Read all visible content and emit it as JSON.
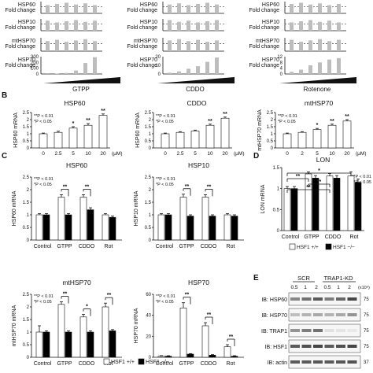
{
  "colors": {
    "ink": "#111111",
    "bar_gray": "#bdbdbd",
    "bar_white": "#ffffff",
    "bar_black": "#000000",
    "blot_band": "#1a1a1a",
    "blot_bg": "#f6f6f6"
  },
  "panel_a": {
    "columns": [
      {
        "label": "GTPP"
      },
      {
        "label": "CDDO"
      },
      {
        "label": "Rotenone"
      }
    ],
    "rows": [
      {
        "name": "HSP60",
        "sub": "Fold change"
      },
      {
        "name": "HSP10",
        "sub": "Fold change"
      },
      {
        "name": "mtHSP70",
        "sub": "Fold change"
      },
      {
        "name": "HSP70",
        "sub": "Fold change"
      }
    ],
    "hsp70_ticks": [
      [
        "300",
        "200",
        "100",
        "0"
      ],
      [
        "20",
        "10",
        "0"
      ],
      [
        "12",
        "8",
        "4",
        "0"
      ]
    ],
    "hsp70_values": [
      [
        2,
        6,
        18,
        60,
        190,
        290
      ],
      [
        1.5,
        3,
        6,
        9,
        14,
        19
      ],
      [
        1.5,
        3,
        6,
        8,
        10,
        11
      ]
    ]
  },
  "panel_b": {
    "letter": "B",
    "ylabel_unit": "mRNA",
    "x_unit": "(μM)",
    "legend": [
      "**P < 0.01",
      "*P < 0.05"
    ],
    "charts": [
      {
        "title": "HSP60",
        "ylabel": "HSP60 mRNA",
        "x": [
          "0",
          "2.5",
          "5",
          "10",
          "20"
        ],
        "values": [
          1.0,
          1.1,
          1.4,
          1.6,
          2.3
        ],
        "errors": [
          0.05,
          0.08,
          0.1,
          0.12,
          0.1
        ],
        "marks": [
          "",
          "",
          "*",
          "**",
          "**"
        ],
        "yticks": [
          "0",
          "0.5",
          "1",
          "1.5",
          "2",
          "2.5"
        ],
        "ymax": 2.5
      },
      {
        "title": "CDDO",
        "ylabel": "HSP60 mRNA",
        "x": [
          "0",
          "2.5",
          "5",
          "10",
          "20"
        ],
        "values": [
          1.0,
          1.1,
          1.2,
          1.6,
          2.1
        ],
        "errors": [
          0.05,
          0.05,
          0.06,
          0.08,
          0.08
        ],
        "marks": [
          "",
          "",
          "",
          "**",
          "**"
        ],
        "yticks": [
          "0",
          "0.5",
          "1",
          "1.5",
          "2",
          "2.5"
        ],
        "ymax": 2.5
      },
      {
        "title": "mtHSP70",
        "ylabel": "mtHSP70 mRNA",
        "x": [
          "0",
          "2",
          "5",
          "10",
          "20"
        ],
        "values": [
          1.0,
          1.1,
          1.3,
          1.6,
          1.9
        ],
        "errors": [
          0.05,
          0.05,
          0.08,
          0.08,
          0.1
        ],
        "marks": [
          "",
          "",
          "*",
          "**",
          "**"
        ],
        "yticks": [
          "0",
          "0.5",
          "1",
          "1.5",
          "2",
          "2.5"
        ],
        "ymax": 2.5
      }
    ],
    "wedge_labels": [
      "GTPP",
      "CDDO",
      "Rotenone"
    ]
  },
  "panel_c": {
    "letter": "C",
    "categories": [
      "Control",
      "GTPP",
      "CDDO",
      "Rot"
    ],
    "legend": [
      "**P < 0.01",
      "*P < 0.05"
    ],
    "charts": [
      {
        "title": "HSP60",
        "ylabel": "HSP60 mRNA",
        "yticks": [
          "0",
          "0.5",
          "1",
          "1.5",
          "2",
          "2.5"
        ],
        "ymax": 2.5,
        "series": [
          {
            "name": "HSF1 +/+",
            "values": [
              1.0,
              1.7,
              1.7,
              1.0
            ],
            "errors": [
              0.05,
              0.1,
              0.1,
              0.05
            ]
          },
          {
            "name": "HSF1 −/−",
            "values": [
              1.0,
              1.0,
              1.2,
              0.9
            ],
            "errors": [
              0.05,
              0.05,
              0.08,
              0.05
            ]
          }
        ],
        "marks": [
          "",
          "**",
          "**",
          ""
        ]
      },
      {
        "title": "HSP10",
        "ylabel": "HSP10 mRNA",
        "yticks": [
          "0",
          "0.5",
          "1",
          "1.5",
          "2",
          "2.5"
        ],
        "ymax": 2.5,
        "series": [
          {
            "name": "HSF1 +/+",
            "values": [
              1.0,
              1.7,
              1.7,
              1.0
            ],
            "errors": [
              0.05,
              0.12,
              0.1,
              0.05
            ]
          },
          {
            "name": "HSF1 −/−",
            "values": [
              1.0,
              0.95,
              0.95,
              0.95
            ],
            "errors": [
              0.05,
              0.05,
              0.05,
              0.05
            ]
          }
        ],
        "marks": [
          "",
          "**",
          "**",
          ""
        ]
      },
      {
        "title": "mtHSP70",
        "ylabel": "mtHSP70 mRNA",
        "yticks": [
          "0",
          "0.5",
          "1",
          "1.5",
          "2",
          "2.5"
        ],
        "ymax": 2.5,
        "series": [
          {
            "name": "HSF1 +/+",
            "values": [
              1.0,
              2.1,
              1.6,
              2.0
            ],
            "errors": [
              0.25,
              0.1,
              0.1,
              0.15
            ]
          },
          {
            "name": "HSF1 −/−",
            "values": [
              1.0,
              1.0,
              1.0,
              1.05
            ],
            "errors": [
              0.05,
              0.05,
              0.05,
              0.05
            ]
          }
        ],
        "marks": [
          "",
          "**",
          "*",
          "**"
        ]
      },
      {
        "title": "HSP70",
        "ylabel": "HSP70 mRNA",
        "yticks": [
          "0",
          "20",
          "40",
          "60"
        ],
        "ymax": 60,
        "series": [
          {
            "name": "HSF1 +/+",
            "values": [
              1,
              47,
              30,
              10
            ],
            "errors": [
              0.5,
              5,
              3,
              2
            ]
          },
          {
            "name": "HSF1 −/−",
            "values": [
              1,
              3,
              2,
              1
            ],
            "errors": [
              0.5,
              0.5,
              0.5,
              0.5
            ]
          }
        ],
        "marks": [
          "",
          "**",
          "**",
          "**"
        ]
      }
    ]
  },
  "panel_d": {
    "letter": "D",
    "title": "LON",
    "ylabel": "LON mRNA",
    "categories": [
      "Control",
      "GTPP",
      "CDDO",
      "Rot"
    ],
    "yticks": [
      "0",
      "0.5",
      "1",
      "1.5"
    ],
    "ymax": 1.5,
    "series": [
      {
        "name": "HSF1 +/+",
        "values": [
          1.0,
          1.35,
          1.3,
          1.3
        ],
        "errors": [
          0.05,
          0.05,
          0.06,
          0.1
        ]
      },
      {
        "name": "HSF1 −/−",
        "values": [
          1.0,
          1.25,
          1.25,
          1.15
        ],
        "errors": [
          0.05,
          0.06,
          0.06,
          0.08
        ]
      }
    ],
    "brackets": [
      "**",
      "**",
      "**",
      "*"
    ],
    "legend": [
      "**P < 0.01",
      "*P < 0.05"
    ]
  },
  "panel_e": {
    "letter": "E",
    "groups": [
      "SCR",
      "TRAP1-KD"
    ],
    "doses": [
      "0.5",
      "1",
      "2",
      "0.5",
      "1",
      "2"
    ],
    "dose_unit": "(x10⁶)",
    "rows": [
      {
        "label": "IB: HSP60",
        "marker": "75"
      },
      {
        "label": "IB: HSP70",
        "marker": "75"
      },
      {
        "label": "IB: TRAP1",
        "marker": "75"
      },
      {
        "label": "IB: HSF1",
        "marker": "75"
      },
      {
        "label": "IB: actin",
        "marker": "37"
      }
    ]
  },
  "legend_bottom": {
    "white": "HSF1 +/+",
    "black": "HSF1 −/−"
  }
}
